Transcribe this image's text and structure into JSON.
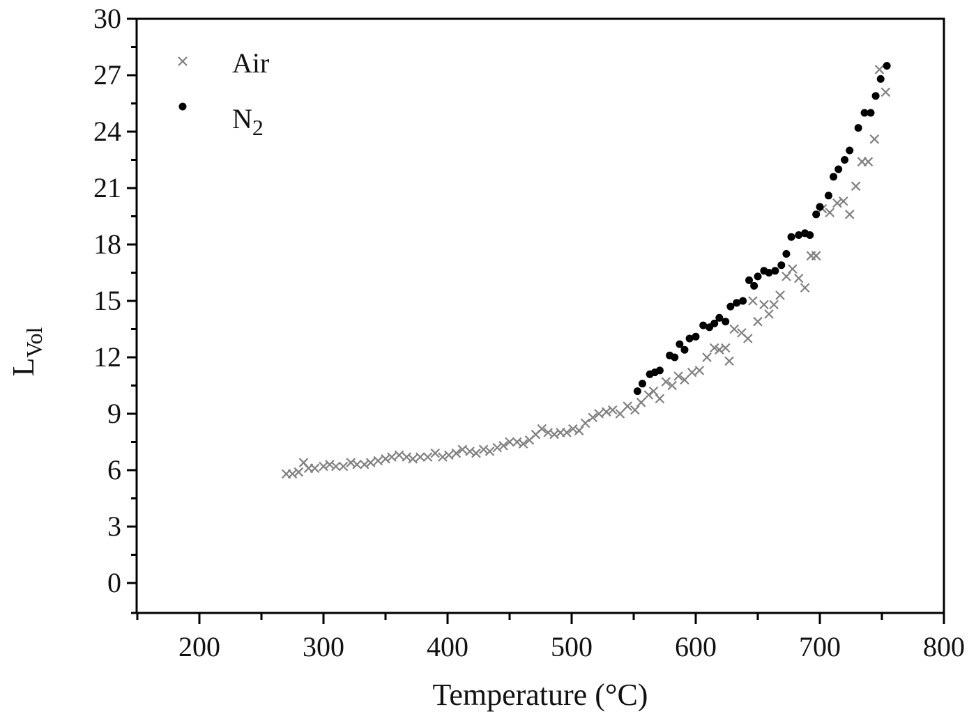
{
  "chart_data": {
    "type": "scatter",
    "title": "",
    "xlabel": "Temperature (°C)",
    "ylabel": "L_Vol",
    "ylabel_main": "L",
    "ylabel_sub": "Vol",
    "xlim": [
      150,
      800
    ],
    "ylim": [
      -1.5,
      30
    ],
    "xticks": [
      200,
      300,
      400,
      500,
      600,
      700,
      800
    ],
    "yticks": [
      0,
      3,
      6,
      9,
      12,
      15,
      18,
      21,
      24,
      27,
      30
    ],
    "grid": false,
    "legend_position": "upper left",
    "series": [
      {
        "name": "Air",
        "marker": "x",
        "color": "#808080",
        "x": [
          270,
          275,
          280,
          284,
          288,
          293,
          300,
          305,
          310,
          316,
          322,
          327,
          333,
          338,
          344,
          350,
          355,
          361,
          367,
          372,
          378,
          384,
          390,
          396,
          401,
          407,
          412,
          418,
          423,
          429,
          434,
          440,
          445,
          450,
          456,
          461,
          466,
          471,
          476,
          481,
          486,
          491,
          496,
          501,
          506,
          511,
          517,
          522,
          528,
          533,
          539,
          545,
          551,
          556,
          562,
          566,
          571,
          576,
          581,
          586,
          591,
          597,
          603,
          609,
          615,
          619,
          624,
          627,
          631,
          637,
          642,
          646,
          650,
          655,
          659,
          663,
          668,
          673,
          678,
          683,
          688,
          693,
          697,
          702,
          708,
          714,
          719,
          724,
          729,
          734,
          739,
          744,
          748,
          753
        ],
        "y": [
          5.8,
          5.8,
          5.9,
          6.4,
          6.1,
          6.1,
          6.2,
          6.3,
          6.2,
          6.2,
          6.4,
          6.3,
          6.3,
          6.4,
          6.5,
          6.6,
          6.7,
          6.8,
          6.7,
          6.6,
          6.7,
          6.7,
          6.9,
          6.7,
          6.8,
          6.9,
          7.1,
          7.0,
          6.9,
          7.1,
          7.0,
          7.2,
          7.3,
          7.5,
          7.5,
          7.4,
          7.6,
          7.9,
          8.2,
          8.0,
          7.9,
          8.0,
          8.0,
          8.2,
          8.1,
          8.5,
          8.8,
          9.0,
          9.1,
          9.2,
          9.0,
          9.4,
          9.2,
          9.6,
          10.0,
          10.2,
          9.8,
          10.7,
          10.5,
          11.0,
          10.8,
          11.2,
          11.3,
          12.0,
          12.5,
          12.4,
          12.5,
          11.8,
          13.5,
          13.3,
          13.0,
          15.0,
          13.9,
          14.8,
          14.3,
          14.8,
          15.3,
          16.3,
          16.7,
          16.2,
          15.7,
          17.4,
          17.4,
          19.9,
          19.7,
          20.2,
          20.3,
          19.6,
          21.1,
          22.4,
          22.4,
          23.6,
          27.3,
          26.1
        ]
      },
      {
        "name": "N2",
        "marker": "o",
        "color": "#000000",
        "x": [
          553,
          557,
          563,
          567,
          571,
          579,
          583,
          587,
          591,
          595,
          600,
          606,
          611,
          615,
          619,
          624,
          628,
          633,
          638,
          643,
          647,
          650,
          655,
          659,
          664,
          669,
          673,
          677,
          683,
          688,
          692,
          697,
          700,
          707,
          711,
          715,
          720,
          724,
          731,
          736,
          741,
          745,
          749,
          754
        ],
        "y": [
          10.2,
          10.6,
          11.1,
          11.2,
          11.3,
          12.1,
          12.0,
          12.7,
          12.4,
          13.0,
          13.1,
          13.7,
          13.6,
          13.8,
          14.1,
          13.9,
          14.7,
          14.9,
          15.0,
          16.1,
          15.8,
          16.3,
          16.6,
          16.5,
          16.6,
          16.9,
          17.5,
          18.4,
          18.5,
          18.6,
          18.5,
          19.6,
          20.0,
          20.6,
          21.6,
          22.0,
          22.5,
          23.0,
          24.2,
          25.0,
          25.0,
          25.9,
          26.8,
          27.5
        ]
      }
    ]
  },
  "legend": {
    "items": [
      {
        "label": "Air",
        "sub": ""
      },
      {
        "label": "N",
        "sub": "2"
      }
    ]
  }
}
